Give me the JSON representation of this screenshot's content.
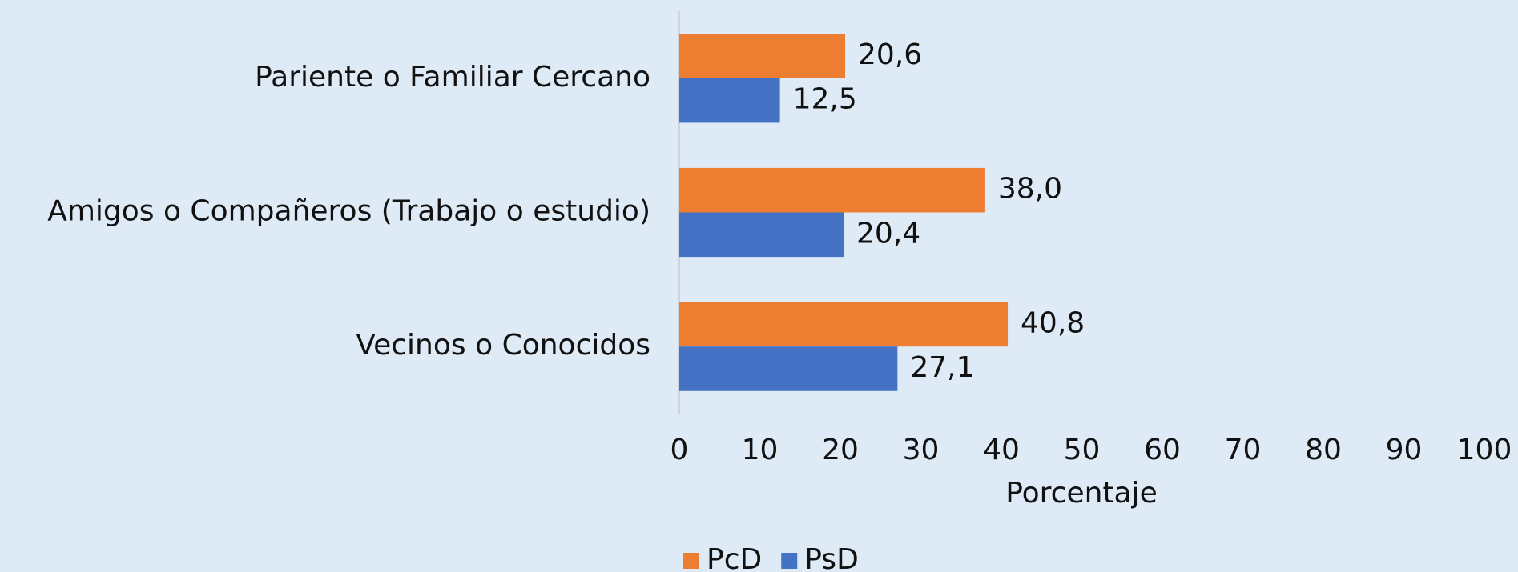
{
  "chart_data": {
    "type": "bar",
    "orientation": "horizontal",
    "categories": [
      "Pariente o Familiar Cercano",
      "Amigos o Compañeros (Trabajo o estudio)",
      "Vecinos o Conocidos"
    ],
    "series": [
      {
        "name": "PcD",
        "color": "#ed7d31",
        "values": [
          20.6,
          38.0,
          40.8
        ],
        "value_labels": [
          "20,6",
          "38,0",
          "40,8"
        ]
      },
      {
        "name": "PsD",
        "color": "#4472c4",
        "values": [
          12.5,
          20.4,
          27.1
        ],
        "value_labels": [
          "12,5",
          "20,4",
          "27,1"
        ]
      }
    ],
    "xlabel": "Porcentaje",
    "xlim": [
      0,
      100
    ],
    "xticks": [
      0,
      10,
      20,
      30,
      40,
      50,
      60,
      70,
      80,
      90,
      100
    ],
    "grid": false,
    "legend": "bottom"
  }
}
